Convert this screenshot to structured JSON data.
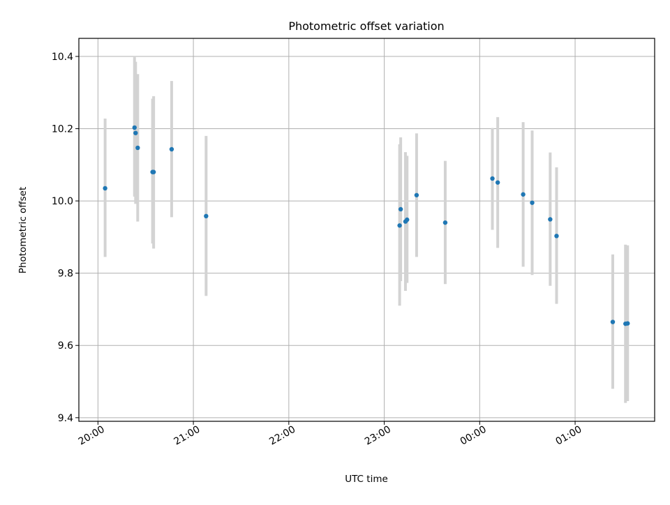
{
  "chart_data": {
    "type": "scatter",
    "title": "Photometric offset variation",
    "xlabel": "UTC time",
    "ylabel": "Photometric offset",
    "xlim": [
      "19:48",
      "01:50"
    ],
    "ylim": [
      9.39,
      10.45
    ],
    "x_ticks": [
      "20:00",
      "21:00",
      "22:00",
      "23:00",
      "00:00",
      "01:00"
    ],
    "y_ticks": [
      "9.4",
      "9.6",
      "9.8",
      "10.0",
      "10.2",
      "10.4"
    ],
    "grid": true,
    "point_color": "#1f77b4",
    "errorbar_color": "#d3d3d3",
    "points": [
      {
        "t": "20:04:30",
        "y": 10.035,
        "lo": 9.845,
        "hi": 10.228
      },
      {
        "t": "20:23:00",
        "y": 10.203,
        "lo": 10.012,
        "hi": 10.398
      },
      {
        "t": "20:23:40",
        "y": 10.188,
        "lo": 9.992,
        "hi": 10.385
      },
      {
        "t": "20:25:00",
        "y": 10.147,
        "lo": 9.943,
        "hi": 10.351
      },
      {
        "t": "20:34:20",
        "y": 10.08,
        "lo": 9.882,
        "hi": 10.283
      },
      {
        "t": "20:35:00",
        "y": 10.08,
        "lo": 9.868,
        "hi": 10.29
      },
      {
        "t": "20:46:20",
        "y": 10.143,
        "lo": 9.955,
        "hi": 10.332
      },
      {
        "t": "21:08:00",
        "y": 9.958,
        "lo": 9.737,
        "hi": 10.18
      },
      {
        "t": "23:09:40",
        "y": 9.932,
        "lo": 9.71,
        "hi": 10.157
      },
      {
        "t": "23:10:20",
        "y": 9.977,
        "lo": 9.778,
        "hi": 10.176
      },
      {
        "t": "23:13:20",
        "y": 9.943,
        "lo": 9.751,
        "hi": 10.135
      },
      {
        "t": "23:14:20",
        "y": 9.948,
        "lo": 9.773,
        "hi": 10.125
      },
      {
        "t": "23:20:20",
        "y": 10.016,
        "lo": 9.845,
        "hi": 10.187
      },
      {
        "t": "23:38:20",
        "y": 9.94,
        "lo": 9.77,
        "hi": 10.111
      },
      {
        "t": "00:08:00",
        "y": 10.062,
        "lo": 9.92,
        "hi": 10.202
      },
      {
        "t": "00:11:20",
        "y": 10.051,
        "lo": 9.87,
        "hi": 10.232
      },
      {
        "t": "00:27:20",
        "y": 10.018,
        "lo": 9.818,
        "hi": 10.218
      },
      {
        "t": "00:33:00",
        "y": 9.995,
        "lo": 9.795,
        "hi": 10.195
      },
      {
        "t": "00:44:20",
        "y": 9.949,
        "lo": 9.765,
        "hi": 10.134
      },
      {
        "t": "00:48:20",
        "y": 9.903,
        "lo": 9.715,
        "hi": 10.093
      },
      {
        "t": "01:23:40",
        "y": 9.665,
        "lo": 9.48,
        "hi": 9.852
      },
      {
        "t": "01:31:40",
        "y": 9.66,
        "lo": 9.441,
        "hi": 9.879
      },
      {
        "t": "01:33:00",
        "y": 9.661,
        "lo": 9.446,
        "hi": 9.877
      }
    ]
  }
}
